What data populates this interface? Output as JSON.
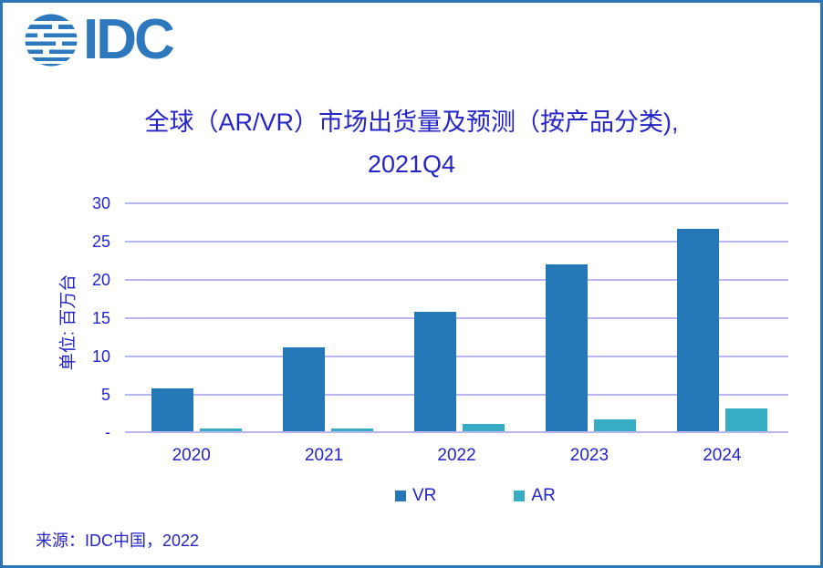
{
  "frame": {
    "background": "#FFFFFF",
    "border_color": "#2E75B6"
  },
  "logo": {
    "text": "IDC",
    "color": "#2E78BE",
    "icon": "striped-globe-icon"
  },
  "title": {
    "line1": "全球（AR/VR）市场出货量及预测（按产品分类),",
    "line2": "2021Q4",
    "color": "#2424C8"
  },
  "source": {
    "text": "来源：IDC中国，2022"
  },
  "colors": {
    "text_blue": "#2424C8",
    "gridline": "#B9B5EE",
    "vr_bar": "#2478B8",
    "ar_bar": "#36ADC4",
    "border": "#2E75B6"
  },
  "chart_data": {
    "type": "bar",
    "title": "全球（AR/VR）市场出货量及预测（按产品分类), 2021Q4",
    "categories": [
      "2020",
      "2021",
      "2022",
      "2023",
      "2024"
    ],
    "series": [
      {
        "name": "VR",
        "color": "#2478B8",
        "values": [
          5.6,
          10.9,
          15.6,
          21.8,
          26.4
        ]
      },
      {
        "name": "AR",
        "color": "#36ADC4",
        "values": [
          0.3,
          0.4,
          0.9,
          1.6,
          3.0
        ]
      }
    ],
    "xlabel": "",
    "ylabel": "单位: 百万台",
    "ylim": [
      0,
      30
    ],
    "ytick_step": 5,
    "ytick_labels": [
      "-",
      "5",
      "10",
      "15",
      "20",
      "25",
      "30"
    ],
    "grid": true,
    "legend_position": "bottom"
  }
}
